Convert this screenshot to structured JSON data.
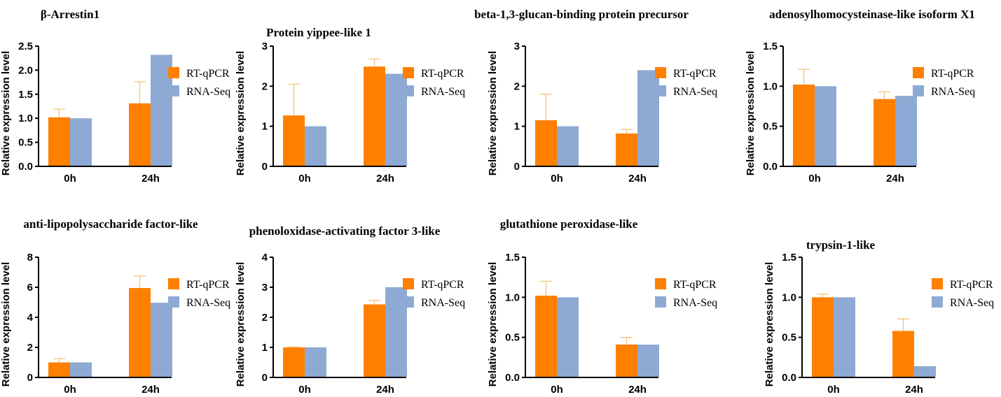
{
  "chart_data": [
    {
      "type": "bar",
      "title": "β-Arrestin1",
      "ylabel": "Relative expression level",
      "categories": [
        "0h",
        "24h"
      ],
      "ylim": [
        0,
        2.5
      ],
      "yticks": [
        "0.0",
        "0.5",
        "1.0",
        "1.5",
        "2.0",
        "2.5"
      ],
      "series": [
        {
          "name": "RT-qPCR",
          "values": [
            1.02,
            1.31
          ],
          "errors": [
            0.17,
            0.45
          ]
        },
        {
          "name": "RNA-Seq",
          "values": [
            1.0,
            2.32
          ]
        }
      ]
    },
    {
      "type": "bar",
      "title": "Protein yippee-like 1",
      "ylabel": "Relative expression level",
      "categories": [
        "0h",
        "24h"
      ],
      "ylim": [
        0,
        3
      ],
      "yticks": [
        "0",
        "1",
        "2",
        "3"
      ],
      "series": [
        {
          "name": "RT-qPCR",
          "values": [
            1.27,
            2.49
          ],
          "errors": [
            0.78,
            0.19
          ]
        },
        {
          "name": "RNA-Seq",
          "values": [
            1.0,
            2.31
          ]
        }
      ]
    },
    {
      "type": "bar",
      "title": "beta-1,3-glucan-binding protein precursor",
      "ylabel": "Relative expression level",
      "categories": [
        "0h",
        "24h"
      ],
      "ylim": [
        0,
        3
      ],
      "yticks": [
        "0",
        "1",
        "2",
        "3"
      ],
      "series": [
        {
          "name": "RT-qPCR",
          "values": [
            1.15,
            0.82
          ],
          "errors": [
            0.65,
            0.1
          ]
        },
        {
          "name": "RNA-Seq",
          "values": [
            1.0,
            2.4
          ]
        }
      ]
    },
    {
      "type": "bar",
      "title": "adenosylhomocysteinase-like isoform X1",
      "ylabel": "Relative expression level",
      "categories": [
        "0h",
        "24h"
      ],
      "ylim": [
        0,
        1.5
      ],
      "yticks": [
        "0.0",
        "0.5",
        "1.0",
        "1.5"
      ],
      "series": [
        {
          "name": "RT-qPCR",
          "values": [
            1.02,
            0.84
          ],
          "errors": [
            0.19,
            0.09
          ]
        },
        {
          "name": "RNA-Seq",
          "values": [
            1.0,
            0.88
          ]
        }
      ]
    },
    {
      "type": "bar",
      "title": "anti-lipopolysaccharide factor-like",
      "ylabel": "Relative expression level",
      "categories": [
        "0h",
        "24h"
      ],
      "ylim": [
        0,
        8
      ],
      "yticks": [
        "0",
        "2",
        "4",
        "6",
        "8"
      ],
      "series": [
        {
          "name": "RT-qPCR",
          "values": [
            1.0,
            5.95
          ],
          "errors": [
            0.25,
            0.8
          ]
        },
        {
          "name": "RNA-Seq",
          "values": [
            1.0,
            4.97
          ]
        }
      ]
    },
    {
      "type": "bar",
      "title": "phenoloxidase-activating factor 3-like",
      "ylabel": "Relative expression level",
      "categories": [
        "0h",
        "24h"
      ],
      "ylim": [
        0,
        4
      ],
      "yticks": [
        "0",
        "1",
        "2",
        "3",
        "4"
      ],
      "series": [
        {
          "name": "RT-qPCR",
          "values": [
            1.0,
            2.43
          ],
          "errors": [
            0.02,
            0.13
          ]
        },
        {
          "name": "RNA-Seq",
          "values": [
            1.0,
            3.0
          ]
        }
      ]
    },
    {
      "type": "bar",
      "title": "glutathione peroxidase-like",
      "ylabel": "Relative expression level",
      "categories": [
        "0h",
        "24h"
      ],
      "ylim": [
        0,
        1.5
      ],
      "yticks": [
        "0.0",
        "0.5",
        "1.0",
        "1.5"
      ],
      "series": [
        {
          "name": "RT-qPCR",
          "values": [
            1.02,
            0.41
          ],
          "errors": [
            0.18,
            0.09
          ]
        },
        {
          "name": "RNA-Seq",
          "values": [
            1.0,
            0.41
          ]
        }
      ]
    },
    {
      "type": "bar",
      "title": "trypsin-1-like",
      "ylabel": "Relative expression level",
      "categories": [
        "0h",
        "24h"
      ],
      "ylim": [
        0,
        1.5
      ],
      "yticks": [
        "0.0",
        "0.5",
        "1.0",
        "1.5"
      ],
      "series": [
        {
          "name": "RT-qPCR",
          "values": [
            1.0,
            0.58
          ],
          "errors": [
            0.04,
            0.15
          ]
        },
        {
          "name": "RNA-Seq",
          "values": [
            1.0,
            0.14
          ]
        }
      ]
    }
  ],
  "colors": {
    "RT-qPCR": "#ff7f00",
    "RNA-Seq": "#8eaad4",
    "error": "#f5c27a"
  }
}
